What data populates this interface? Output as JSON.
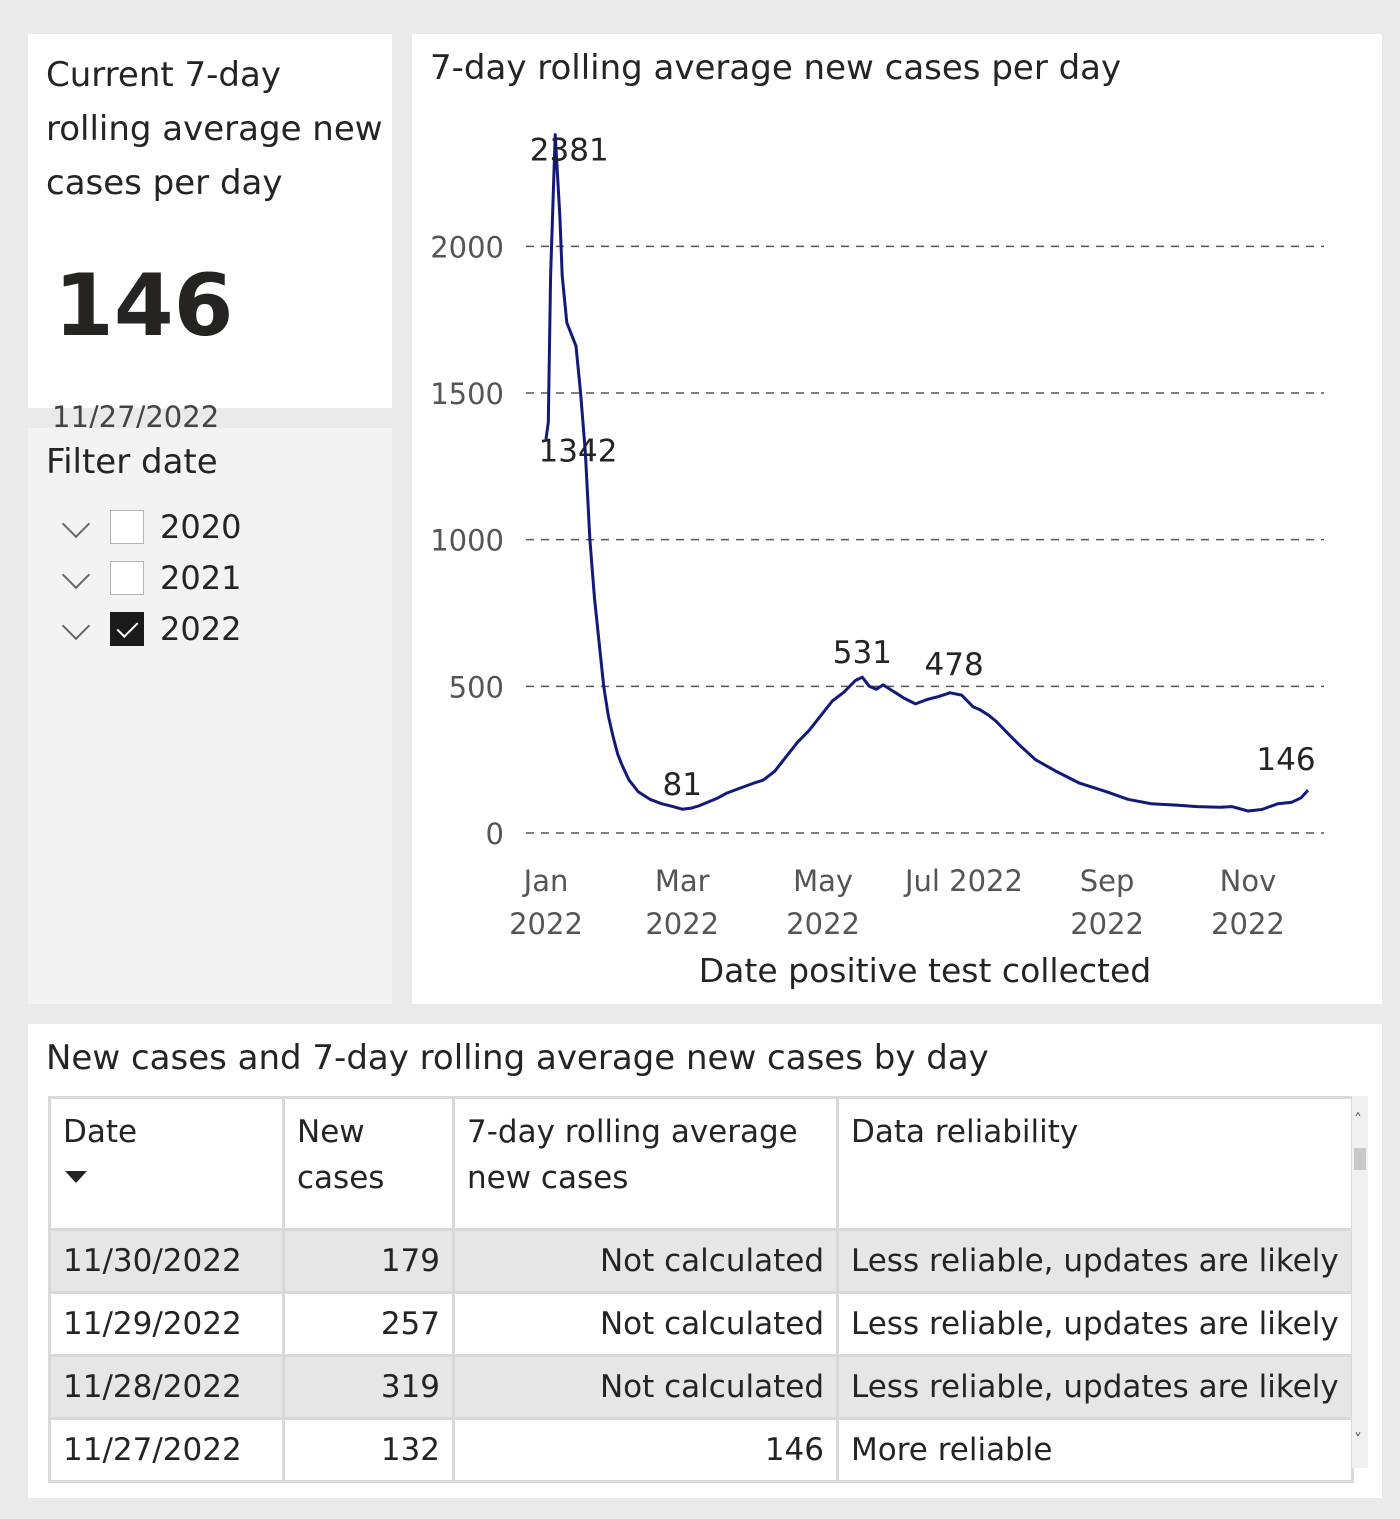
{
  "kpi": {
    "title": "Current 7-day rolling average new cases per day",
    "value": "146",
    "date": "11/27/2022"
  },
  "filter": {
    "title": "Filter date",
    "items": [
      {
        "label": "2020",
        "checked": false
      },
      {
        "label": "2021",
        "checked": false
      },
      {
        "label": "2022",
        "checked": true
      }
    ]
  },
  "chart_data": {
    "type": "line",
    "title": "7-day rolling average new cases per day",
    "xlabel": "Date positive test collected",
    "ylabel": "",
    "ylim": [
      0,
      2400
    ],
    "yticks": [
      0,
      500,
      1000,
      1500,
      2000
    ],
    "grid": true,
    "line_color": "#12197a",
    "xtick_labels": [
      {
        "date": "2022-01-01",
        "label": [
          "Jan",
          "2022"
        ]
      },
      {
        "date": "2022-03-01",
        "label": [
          "Mar",
          "2022"
        ]
      },
      {
        "date": "2022-05-01",
        "label": [
          "May",
          "2022"
        ]
      },
      {
        "date": "2022-07-01",
        "label": [
          "Jul 2022"
        ]
      },
      {
        "date": "2022-09-01",
        "label": [
          "Sep",
          "2022"
        ]
      },
      {
        "date": "2022-11-01",
        "label": [
          "Nov",
          "2022"
        ]
      }
    ],
    "series": [
      {
        "x": [
          "2022-01-01",
          "2022-01-02",
          "2022-01-03",
          "2022-01-05",
          "2022-01-07",
          "2022-01-08",
          "2022-01-10",
          "2022-01-12",
          "2022-01-14",
          "2022-01-16",
          "2022-01-18",
          "2022-01-20",
          "2022-01-22",
          "2022-01-24",
          "2022-01-26",
          "2022-01-28",
          "2022-01-30",
          "2022-02-01",
          "2022-02-03",
          "2022-02-06",
          "2022-02-10",
          "2022-02-15",
          "2022-02-20",
          "2022-02-25",
          "2022-03-01",
          "2022-03-05",
          "2022-03-08",
          "2022-03-12",
          "2022-03-16",
          "2022-03-20",
          "2022-03-25",
          "2022-04-01",
          "2022-04-05",
          "2022-04-10",
          "2022-04-15",
          "2022-04-20",
          "2022-04-25",
          "2022-05-01",
          "2022-05-05",
          "2022-05-10",
          "2022-05-15",
          "2022-05-18",
          "2022-05-21",
          "2022-05-24",
          "2022-05-27",
          "2022-06-01",
          "2022-06-05",
          "2022-06-10",
          "2022-06-15",
          "2022-06-20",
          "2022-06-25",
          "2022-06-30",
          "2022-07-05",
          "2022-07-08",
          "2022-07-12",
          "2022-07-15",
          "2022-07-20",
          "2022-07-25",
          "2022-08-01",
          "2022-08-10",
          "2022-08-20",
          "2022-09-01",
          "2022-09-10",
          "2022-09-20",
          "2022-10-01",
          "2022-10-10",
          "2022-10-20",
          "2022-10-25",
          "2022-11-01",
          "2022-11-07",
          "2022-11-14",
          "2022-11-20",
          "2022-11-24",
          "2022-11-27"
        ],
        "y": [
          1342,
          1400,
          1900,
          2381,
          2100,
          1900,
          1740,
          1700,
          1660,
          1500,
          1300,
          1000,
          800,
          650,
          500,
          400,
          330,
          270,
          230,
          180,
          140,
          115,
          100,
          90,
          81,
          85,
          92,
          105,
          118,
          135,
          150,
          170,
          180,
          210,
          260,
          310,
          350,
          410,
          450,
          480,
          520,
          531,
          500,
          490,
          505,
          480,
          460,
          440,
          455,
          465,
          478,
          470,
          430,
          420,
          400,
          380,
          340,
          300,
          250,
          210,
          170,
          140,
          115,
          100,
          95,
          90,
          88,
          90,
          75,
          80,
          100,
          105,
          120,
          146
        ]
      }
    ],
    "annotations": [
      {
        "text": "2381",
        "x": "2022-01-05",
        "y": 2381
      },
      {
        "text": "1342",
        "x": "2022-01-01",
        "y": 1342
      },
      {
        "text": "81",
        "x": "2022-03-01",
        "y": 81
      },
      {
        "text": "531",
        "x": "2022-05-18",
        "y": 531
      },
      {
        "text": "478",
        "x": "2022-06-25",
        "y": 478
      },
      {
        "text": "146",
        "x": "2022-11-27",
        "y": 146
      }
    ]
  },
  "table": {
    "title": "New cases and 7-day rolling average new cases by day",
    "columns": [
      "Date",
      "New cases",
      "7-day rolling average new cases",
      "Data reliability"
    ],
    "rows": [
      [
        "11/30/2022",
        "179",
        "Not calculated",
        "Less reliable, updates are likely"
      ],
      [
        "11/29/2022",
        "257",
        "Not calculated",
        "Less reliable, updates are likely"
      ],
      [
        "11/28/2022",
        "319",
        "Not calculated",
        "Less reliable, updates are likely"
      ],
      [
        "11/27/2022",
        "132",
        "146",
        "More reliable"
      ]
    ]
  }
}
